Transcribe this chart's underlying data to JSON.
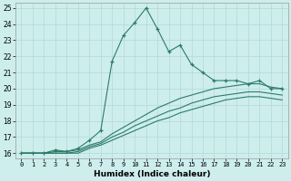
{
  "xlabel": "Humidex (Indice chaleur)",
  "background_color": "#cdeeed",
  "grid_color": "#b8dbd9",
  "line_color": "#2d7a6a",
  "xlim": [
    -0.5,
    23.5
  ],
  "ylim": [
    15.7,
    25.3
  ],
  "xticks": [
    0,
    1,
    2,
    3,
    4,
    5,
    6,
    7,
    8,
    9,
    10,
    11,
    12,
    13,
    14,
    15,
    16,
    17,
    18,
    19,
    20,
    21,
    22,
    23
  ],
  "yticks": [
    16,
    17,
    18,
    19,
    20,
    21,
    22,
    23,
    24,
    25
  ],
  "line1_x": [
    0,
    1,
    2,
    3,
    4,
    5,
    6,
    7,
    8,
    9,
    10,
    11,
    12,
    13,
    14,
    15,
    16,
    17,
    18,
    19,
    20,
    21,
    22,
    23
  ],
  "line1_y": [
    16.0,
    16.0,
    16.0,
    16.2,
    16.1,
    16.3,
    16.8,
    17.4,
    21.7,
    23.3,
    24.1,
    25.0,
    23.7,
    22.3,
    22.7,
    21.5,
    21.0,
    20.5,
    20.5,
    20.5,
    20.3,
    20.5,
    20.0,
    20.0
  ],
  "line2_x": [
    0,
    1,
    2,
    3,
    4,
    5,
    6,
    7,
    8,
    9,
    10,
    11,
    12,
    13,
    14,
    15,
    16,
    17,
    18,
    19,
    20,
    21,
    22,
    23
  ],
  "line2_y": [
    16.0,
    16.0,
    16.0,
    16.1,
    16.1,
    16.2,
    16.5,
    16.7,
    17.2,
    17.6,
    18.0,
    18.4,
    18.8,
    19.1,
    19.4,
    19.6,
    19.8,
    20.0,
    20.1,
    20.2,
    20.3,
    20.3,
    20.1,
    20.0
  ],
  "line3_x": [
    0,
    1,
    2,
    3,
    4,
    5,
    6,
    7,
    8,
    9,
    10,
    11,
    12,
    13,
    14,
    15,
    16,
    17,
    18,
    19,
    20,
    21,
    22,
    23
  ],
  "line3_y": [
    16.0,
    16.0,
    16.0,
    16.0,
    16.0,
    16.1,
    16.4,
    16.6,
    17.0,
    17.3,
    17.7,
    18.0,
    18.3,
    18.6,
    18.8,
    19.1,
    19.3,
    19.5,
    19.6,
    19.7,
    19.8,
    19.8,
    19.7,
    19.6
  ],
  "line4_x": [
    0,
    1,
    2,
    3,
    4,
    5,
    6,
    7,
    8,
    9,
    10,
    11,
    12,
    13,
    14,
    15,
    16,
    17,
    18,
    19,
    20,
    21,
    22,
    23
  ],
  "line4_y": [
    16.0,
    16.0,
    16.0,
    16.0,
    16.0,
    16.0,
    16.3,
    16.5,
    16.8,
    17.1,
    17.4,
    17.7,
    18.0,
    18.2,
    18.5,
    18.7,
    18.9,
    19.1,
    19.3,
    19.4,
    19.5,
    19.5,
    19.4,
    19.3
  ]
}
